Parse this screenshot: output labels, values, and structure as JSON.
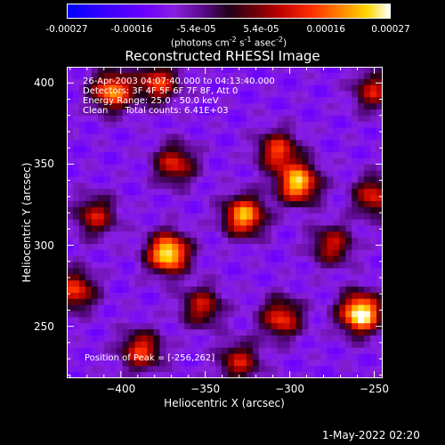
{
  "chart_data": {
    "type": "heatmap",
    "title": "Reconstructed RHESSI Image",
    "xlabel": "Heliocentric X (arcsec)",
    "ylabel": "Heliocentric Y (arcsec)",
    "xlim": [
      -432,
      -245
    ],
    "ylim": [
      218,
      410
    ],
    "xticks": [
      -400,
      -350,
      -300,
      -250
    ],
    "yticks": [
      250,
      300,
      350,
      400
    ],
    "colorbar": {
      "ticks": [
        "-0.00027",
        "-0.00016",
        "-5.4e-05",
        "5.4e-05",
        "0.00016",
        "0.00027"
      ],
      "unit_prefix": "(photons cm",
      "unit_exp1": "-2",
      "unit_mid": " s",
      "unit_exp2": "-1",
      "unit_suffix": " asec",
      "unit_exp3": "-2",
      "unit_close": ")"
    },
    "annotations": [
      "26-Apr-2003 04:07:40.000 to 04:13:40.000",
      "Detectors: 3F 4F 5F 6F 7F 8F, Att 0",
      "Energy Range: 25.0 - 50.0 keV",
      "Clean      Total counts: 6.41E+03"
    ],
    "peak_label": "Position of Peak = [-256,262]",
    "peak": [
      -256,
      262
    ],
    "sources": [
      {
        "x": -258,
        "y": 258,
        "peak": 1.0
      },
      {
        "x": -372,
        "y": 295,
        "peak": 0.95
      },
      {
        "x": -327,
        "y": 318,
        "peak": 0.8
      },
      {
        "x": -295,
        "y": 338,
        "peak": 0.85
      },
      {
        "x": -307,
        "y": 358,
        "peak": 0.6
      },
      {
        "x": -405,
        "y": 395,
        "peak": 0.75
      },
      {
        "x": -378,
        "y": 400,
        "peak": 0.6
      },
      {
        "x": -368,
        "y": 350,
        "peak": 0.55
      },
      {
        "x": -427,
        "y": 272,
        "peak": 0.6
      },
      {
        "x": -415,
        "y": 318,
        "peak": 0.5
      },
      {
        "x": -388,
        "y": 235,
        "peak": 0.6
      },
      {
        "x": -352,
        "y": 262,
        "peak": 0.5
      },
      {
        "x": -305,
        "y": 255,
        "peak": 0.6
      },
      {
        "x": -275,
        "y": 300,
        "peak": 0.5
      },
      {
        "x": -250,
        "y": 330,
        "peak": 0.55
      },
      {
        "x": -250,
        "y": 395,
        "peak": 0.5
      },
      {
        "x": -330,
        "y": 228,
        "peak": 0.5
      }
    ]
  },
  "timestamp": "1-May-2022 02:20"
}
